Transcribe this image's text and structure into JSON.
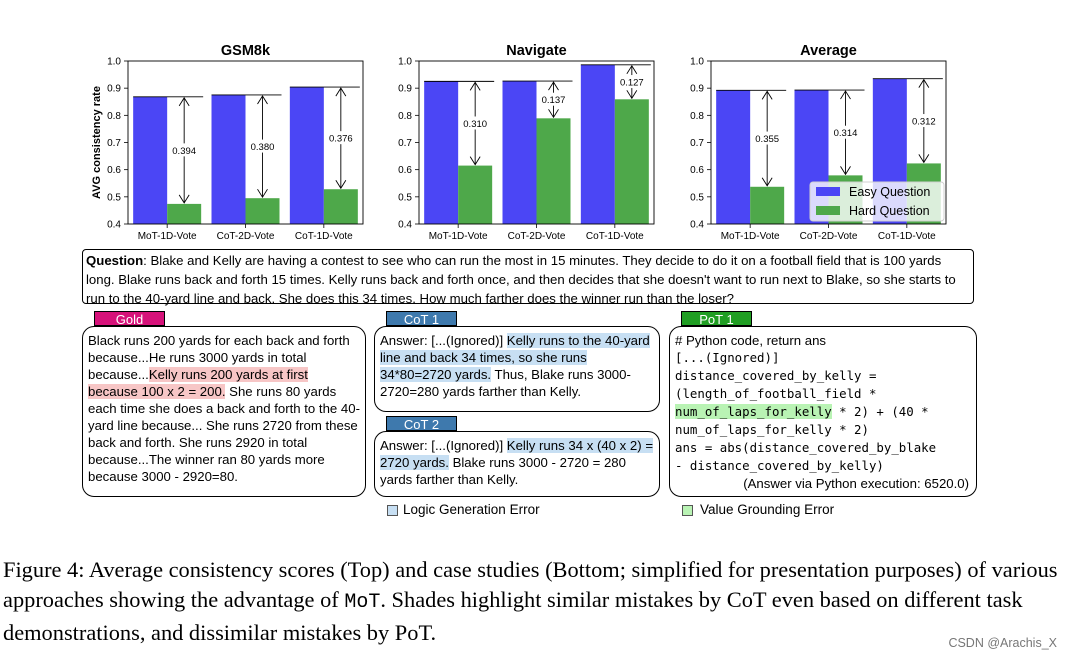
{
  "chart_data": [
    {
      "type": "bar",
      "title": "GSM8k",
      "ylabel": "AVG consistency rate",
      "xlabel": "",
      "ylim": [
        0.4,
        1.0
      ],
      "yticks": [
        "0.4",
        "0.5",
        "0.6",
        "0.7",
        "0.8",
        "0.9",
        "1.0"
      ],
      "categories": [
        "MoT-1D-Vote",
        "CoT-2D-Vote",
        "CoT-1D-Vote"
      ],
      "series": [
        {
          "name": "Easy Question",
          "values": [
            0.868,
            0.875,
            0.904
          ]
        },
        {
          "name": "Hard Question",
          "values": [
            0.474,
            0.495,
            0.528
          ]
        }
      ],
      "annotations": [
        "0.394",
        "0.380",
        "0.376"
      ],
      "legend": "none"
    },
    {
      "type": "bar",
      "title": "Navigate",
      "ylabel": "",
      "xlabel": "",
      "ylim": [
        0.4,
        1.0
      ],
      "yticks": [
        "0.4",
        "0.5",
        "0.6",
        "0.7",
        "0.8",
        "0.9",
        "1.0"
      ],
      "categories": [
        "MoT-1D-Vote",
        "CoT-2D-Vote",
        "CoT-1D-Vote"
      ],
      "series": [
        {
          "name": "Easy Question",
          "values": [
            0.925,
            0.926,
            0.986
          ]
        },
        {
          "name": "Hard Question",
          "values": [
            0.615,
            0.789,
            0.859
          ]
        }
      ],
      "annotations": [
        "0.310",
        "0.137",
        "0.127"
      ],
      "legend": "none"
    },
    {
      "type": "bar",
      "title": "Average",
      "ylabel": "",
      "xlabel": "",
      "ylim": [
        0.4,
        1.0
      ],
      "yticks": [
        "0.4",
        "0.5",
        "0.6",
        "0.7",
        "0.8",
        "0.9",
        "1.0"
      ],
      "categories": [
        "MoT-1D-Vote",
        "CoT-2D-Vote",
        "CoT-1D-Vote"
      ],
      "series": [
        {
          "name": "Easy Question",
          "values": [
            0.892,
            0.893,
            0.935
          ]
        },
        {
          "name": "Hard Question",
          "values": [
            0.537,
            0.579,
            0.623
          ]
        }
      ],
      "annotations": [
        "0.355",
        "0.314",
        "0.312"
      ],
      "legend": "bottom-right"
    }
  ],
  "colors": {
    "easy": "#4b46f5",
    "hard": "#4ea84a",
    "gold_tag": "#d6127a",
    "cot_tag": "#3e79ad",
    "pot_tag": "#209e23"
  },
  "question": {
    "label": "Question",
    "text": ": Blake and Kelly are having a contest to see who can run the most in 15 minutes. They decide to do it on a football field that is 100 yards long. Blake runs back and forth 15 times. Kelly runs back and forth once, and then decides that she doesn't want to run next to Blake, so she starts to run to the 40-yard line and back. She does this 34 times. How much farther does the winner run than the loser?"
  },
  "gold": {
    "tag": "Gold",
    "pre": "Black runs 200 yards for each back and forth because...He runs 3000 yards in total because...",
    "highlight": "Kelly runs 200 yards at first because 100 x 2 = 200.",
    "post": " She runs 80 yards each time she does a back and forth to the 40-yard line because... She runs 2720 from these back and forth. She runs 2920 in total because...The winner ran 80 yards more because 3000 - 2920=80."
  },
  "cot1": {
    "tag": "CoT 1",
    "pre": "Answer: [...(Ignored)] ",
    "highlight": "Kelly runs to the 40-yard line and back 34 times, so she runs 34*80=2720 yards.",
    "post": " Thus, Blake runs 3000-2720=280 yards farther than Kelly."
  },
  "cot2": {
    "tag": "CoT 2",
    "pre": "Answer: [...(Ignored)] ",
    "highlight": "Kelly runs 34 x (40 x 2) = 2720 yards.",
    "post": " Blake runs 3000 - 2720 = 280 yards farther than Kelly."
  },
  "pot1": {
    "tag": "PoT 1",
    "comment": "# Python code, return ans",
    "ignored": "[...(Ignored)]",
    "line1": "distance_covered_by_kelly =",
    "line2": "(length_of_football_field *",
    "hl": "num_of_laps_for_kelly",
    "line3_post": " * 2) + (40 *",
    "line4": "num_of_laps_for_kelly * 2)",
    "line5": "ans = abs(distance_covered_by_blake",
    "line6": "- distance_covered_by_kelly)",
    "result": "(Answer via Python execution: 6520.0)"
  },
  "legend_bottom": {
    "logic": "Logic Generation Error",
    "value": "Value Grounding Error"
  },
  "caption": {
    "pre": "Figure 4:  Average consistency scores (Top) and case studies (Bottom; simplified for presentation purposes) of various approaches showing the advantage of ",
    "mot": "MoT",
    "post": ". Shades highlight similar mistakes by CoT even based on different task demonstrations, and dissimilar mistakes by PoT."
  },
  "watermark": "CSDN @Arachis_X"
}
